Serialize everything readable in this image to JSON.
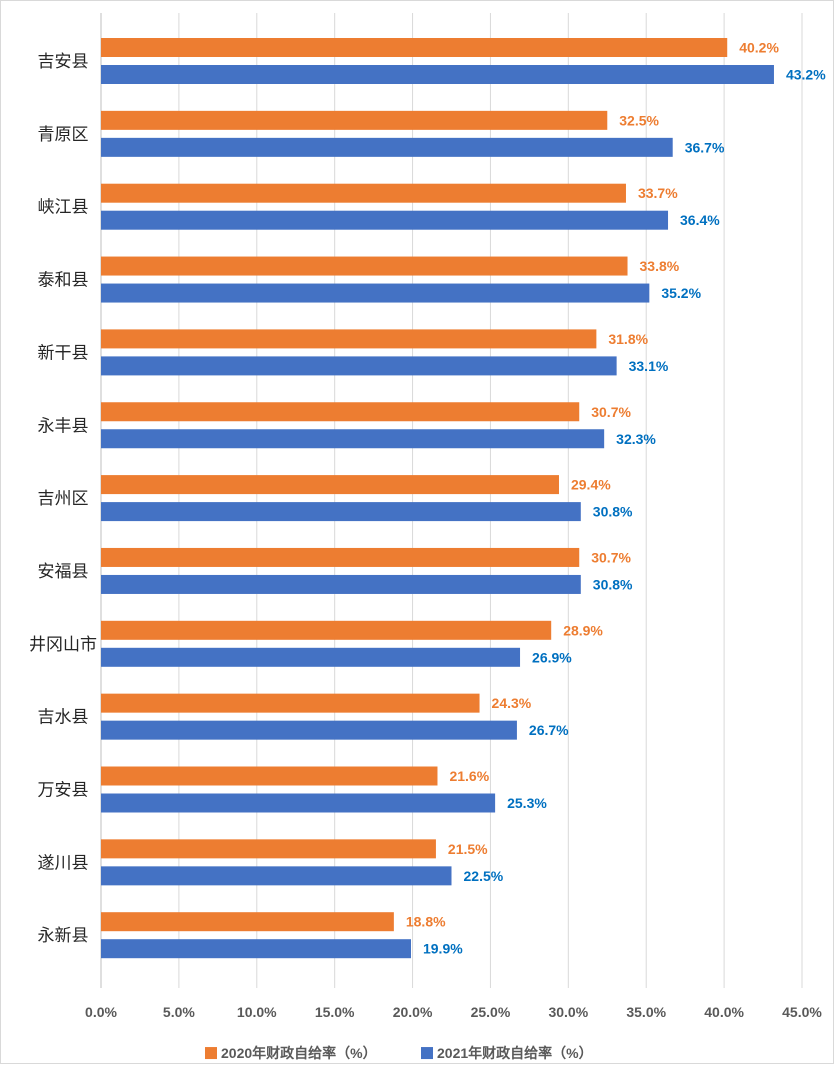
{
  "chart_data": {
    "type": "bar",
    "orientation": "horizontal",
    "categories": [
      "吉安县",
      "青原区",
      "峡江县",
      "泰和县",
      "新干县",
      "永丰县",
      "吉州区",
      "安福县",
      "井冈山市",
      "吉水县",
      "万安县",
      "遂川县",
      "永新县"
    ],
    "series": [
      {
        "name": "2020年财政自给率（%）",
        "color": "#ED7D31",
        "label_color": "#ED7D31",
        "values": [
          40.2,
          32.5,
          33.7,
          33.8,
          31.8,
          30.7,
          29.4,
          30.7,
          28.9,
          24.3,
          21.6,
          21.5,
          18.8
        ],
        "labels": [
          "40.2%",
          "32.5%",
          "33.7%",
          "33.8%",
          "31.8%",
          "30.7%",
          "29.4%",
          "30.7%",
          "28.9%",
          "24.3%",
          "21.6%",
          "21.5%",
          "18.8%"
        ]
      },
      {
        "name": "2021年财政自给率（%）",
        "color": "#4472C4",
        "label_color": "#0070C0",
        "values": [
          43.2,
          36.7,
          36.4,
          35.2,
          33.1,
          32.3,
          30.8,
          30.8,
          26.9,
          26.7,
          25.3,
          22.5,
          19.9
        ],
        "labels": [
          "43.2%",
          "36.7%",
          "36.4%",
          "35.2%",
          "33.1%",
          "32.3%",
          "30.8%",
          "30.8%",
          "26.9%",
          "26.7%",
          "25.3%",
          "22.5%",
          "19.9%"
        ]
      }
    ],
    "xlim": [
      0,
      45
    ],
    "xticks": [
      0,
      5,
      10,
      15,
      20,
      25,
      30,
      35,
      40,
      45
    ],
    "xtick_labels": [
      "0.0%",
      "5.0%",
      "10.0%",
      "15.0%",
      "20.0%",
      "25.0%",
      "30.0%",
      "35.0%",
      "40.0%",
      "45.0%"
    ],
    "gridlines": true,
    "gridline_color": "#D9D9D9",
    "legend_position": "bottom",
    "title": "",
    "xlabel": "",
    "ylabel": ""
  }
}
